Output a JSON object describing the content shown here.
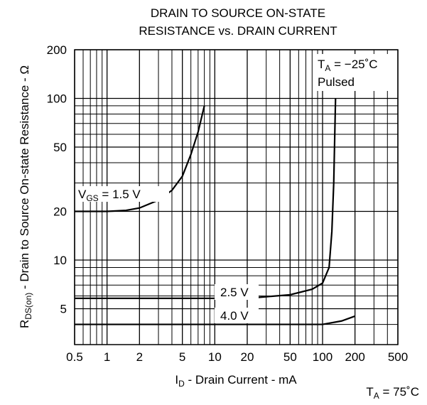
{
  "chart_data": {
    "type": "line",
    "title": [
      "DRAIN TO SOURCE ON-STATE",
      "RESISTANCE vs. DRAIN CURRENT"
    ],
    "ylabel": {
      "main": "R",
      "sub": "DS(on)",
      "rest": " - Drain to Source On-state Resistance - Ω"
    },
    "xlabel": {
      "main": "I",
      "sub": "D",
      "rest": " - Drain Current - mA"
    },
    "condition": {
      "main": "T",
      "sub": "A",
      "rest": " = −25˚C",
      "note": "Pulsed"
    },
    "footer": {
      "main": "T",
      "sub": "A",
      "rest": " = 75˚C"
    },
    "vgs_label": {
      "main": "V",
      "sub": "GS",
      "rest": " = "
    },
    "xlog": true,
    "ylog": true,
    "grid": true,
    "xlim": [
      0.5,
      500
    ],
    "ylim": [
      3,
      200
    ],
    "xticks": [
      0.5,
      1,
      2,
      5,
      10,
      20,
      50,
      100,
      200,
      500
    ],
    "xminor_ticks": [
      0.6,
      0.7,
      0.8,
      0.9,
      3,
      4,
      6,
      7,
      8,
      9,
      30,
      40,
      60,
      70,
      80,
      90,
      300,
      400
    ],
    "yticks": [
      5,
      10,
      20,
      50,
      100,
      200
    ],
    "yminor_ticks": [
      4,
      6,
      7,
      8,
      9,
      30,
      40,
      60,
      70,
      80,
      90
    ],
    "series": [
      {
        "name": "1.5 V",
        "color": "#000000",
        "x": [
          0.5,
          1,
          1.5,
          2,
          3,
          4,
          5,
          6,
          7,
          8
        ],
        "values": [
          20,
          20,
          20.3,
          21,
          23.5,
          27,
          33,
          45,
          62,
          90
        ]
      },
      {
        "name": "2.5 V",
        "color": "#000000",
        "x": [
          0.5,
          20,
          50,
          80,
          100,
          115,
          122,
          127,
          132
        ],
        "values": [
          5.8,
          5.8,
          6.1,
          6.6,
          7.2,
          9,
          15,
          30,
          100
        ]
      },
      {
        "name": "4.0 V",
        "color": "#000000",
        "x": [
          0.5,
          100,
          150,
          200
        ],
        "values": [
          4,
          4,
          4.2,
          4.5
        ]
      }
    ]
  }
}
